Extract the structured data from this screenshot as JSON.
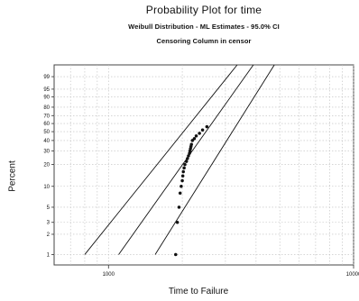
{
  "chart_data": {
    "type": "scatter",
    "title": "Probability Plot for time",
    "subtitle": "Weibull Distribution - ML Estimates - 95.0% CI",
    "subtitle2": "Censoring Column in censor",
    "xlabel": "Time to Failure",
    "ylabel": "Percent",
    "x_scale": "log",
    "y_scale": "weibull",
    "xlim": [
      600,
      10000
    ],
    "ylim": [
      0.7,
      99.9
    ],
    "x_ticks": [
      1000,
      10000
    ],
    "x_tick_labels": [
      "1000",
      "10000"
    ],
    "y_ticks": [
      1,
      2,
      3,
      5,
      10,
      20,
      30,
      40,
      50,
      60,
      70,
      80,
      90,
      95,
      99
    ],
    "y_tick_labels": [
      "1",
      "2",
      "3",
      "5",
      "10",
      "20",
      "30",
      "40",
      "50",
      "60",
      "70",
      "80",
      "90",
      "95",
      "99"
    ],
    "grid": true,
    "series": [
      {
        "name": "",
        "type": "points",
        "x": [
          1880,
          1910,
          1940,
          1960,
          1980,
          2000,
          2010,
          2020,
          2035,
          2050,
          2080,
          2100,
          2120,
          2140,
          2150,
          2160,
          2170,
          2180,
          2200,
          2240,
          2280,
          2350,
          2420,
          2520
        ],
        "y": [
          1,
          3,
          5,
          8,
          10,
          12,
          14,
          16,
          18,
          20,
          22,
          24,
          26,
          28,
          30,
          32,
          34,
          36,
          40,
          42,
          45,
          48,
          52,
          56
        ]
      },
      {
        "name": "",
        "type": "line",
        "x": [
          1100,
          3900
        ],
        "y": [
          1,
          99.9
        ]
      },
      {
        "name": "",
        "type": "line",
        "x": [
          800,
          3350
        ],
        "y": [
          1,
          99.9
        ]
      },
      {
        "name": "",
        "type": "line",
        "x": [
          1550,
          4750
        ],
        "y": [
          1,
          99.9
        ]
      }
    ]
  }
}
